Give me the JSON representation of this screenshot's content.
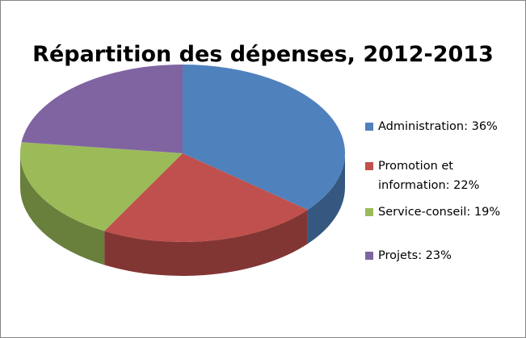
{
  "chart_data": {
    "type": "pie",
    "title": "Répartition des dépenses, 2012-2013",
    "categories": [
      "Administration: 36%",
      "Promotion et information: 22%",
      "Service-conseil: 19%",
      "Projets: 23%"
    ],
    "values": [
      36,
      22,
      19,
      23
    ],
    "colors": [
      "#4f81bd",
      "#c0504d",
      "#9bbb59",
      "#8064a2"
    ],
    "legend": "right"
  }
}
